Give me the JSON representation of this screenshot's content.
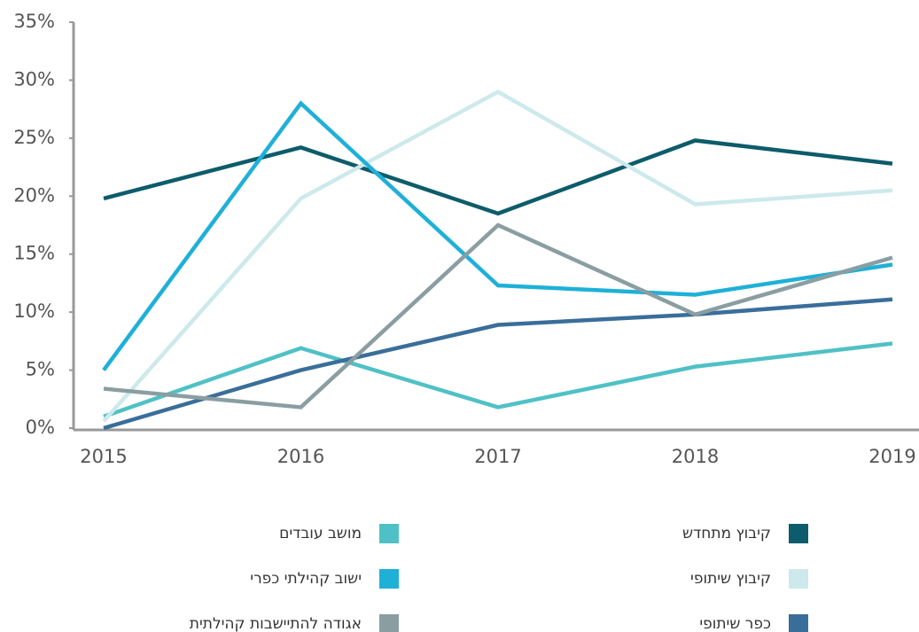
{
  "chart_data": {
    "type": "line",
    "categories": [
      "2015",
      "2016",
      "2017",
      "2018",
      "2019"
    ],
    "series": [
      {
        "name": "קיבוץ מתחדש",
        "color": "#0d5c6b",
        "values": [
          19.8,
          24.2,
          18.5,
          24.8,
          22.8
        ]
      },
      {
        "name": "מושב עובדים",
        "color": "#4fc1c6",
        "values": [
          1,
          6.9,
          1.8,
          5.3,
          7.3
        ]
      },
      {
        "name": "קיבוץ שיתופי",
        "color": "#cde9ec",
        "values": [
          0.6,
          19.8,
          29,
          19.3,
          20.5
        ]
      },
      {
        "name": "ישוב קהילתי כפרי",
        "color": "#1fb0d8",
        "values": [
          5,
          28,
          12.3,
          11.5,
          14.1
        ]
      },
      {
        "name": "כפר שיתופי",
        "color": "#3a6e9a",
        "values": [
          0,
          5,
          8.9,
          9.8,
          11.1
        ]
      },
      {
        "name": "אגודה להתיישבות קהילתית",
        "color": "#8a9ea2",
        "values": [
          3.4,
          1.8,
          17.5,
          9.8,
          14.7
        ]
      }
    ],
    "ylim": [
      0,
      35
    ],
    "yticks": [
      {
        "value": 0,
        "label": "0%"
      },
      {
        "value": 5,
        "label": "5%"
      },
      {
        "value": 10,
        "label": "10%"
      },
      {
        "value": 15,
        "label": "15%"
      },
      {
        "value": 20,
        "label": "20%"
      },
      {
        "value": 25,
        "label": "25%"
      },
      {
        "value": 30,
        "label": "30%"
      },
      {
        "value": 35,
        "label": "35%"
      }
    ],
    "grid": false
  }
}
